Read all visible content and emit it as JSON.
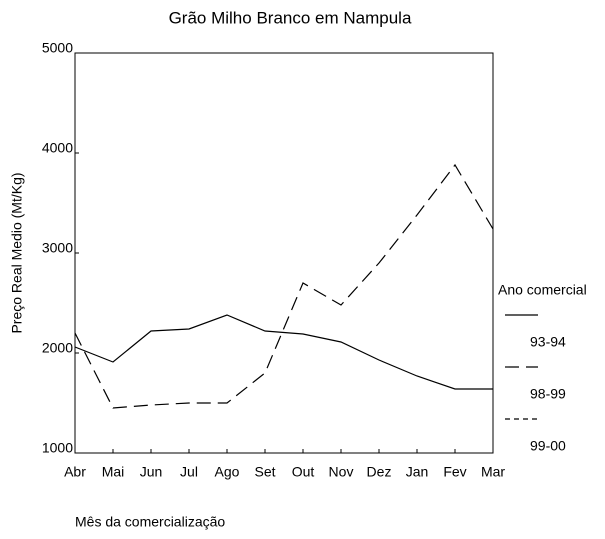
{
  "chart_data": {
    "type": "line",
    "title": "Grão Milho Branco em Nampula",
    "x_label": "Mês da comercialização",
    "y_label": "Preço Real Medio (Mt/Kg)",
    "legend_title": "Ano comercial",
    "categories": [
      "Abr",
      "Mai",
      "Jun",
      "Jul",
      "Ago",
      "Set",
      "Out",
      "Nov",
      "Dez",
      "Jan",
      "Fev",
      "Mar"
    ],
    "series": [
      {
        "name": "93-94",
        "color": "#000000",
        "dash": "solid",
        "values": [
          2060,
          1910,
          2220,
          2240,
          2380,
          2220,
          2190,
          2110,
          1930,
          1770,
          1640,
          1640
        ]
      },
      {
        "name": "98-99",
        "color": "#000000",
        "dash": "long",
        "values": [
          2200,
          1450,
          1480,
          1500,
          1500,
          1800,
          2700,
          2480,
          2900,
          3380,
          3880,
          3240
        ]
      },
      {
        "name": "99-00",
        "color": "#000000",
        "dash": "short",
        "values": [
          null,
          null,
          null,
          null,
          null,
          null,
          null,
          null,
          null,
          null,
          null,
          null
        ]
      }
    ],
    "ylim": [
      1000,
      5000
    ],
    "yticks": [
      1000,
      2000,
      3000,
      4000,
      5000
    ],
    "grid": false
  }
}
